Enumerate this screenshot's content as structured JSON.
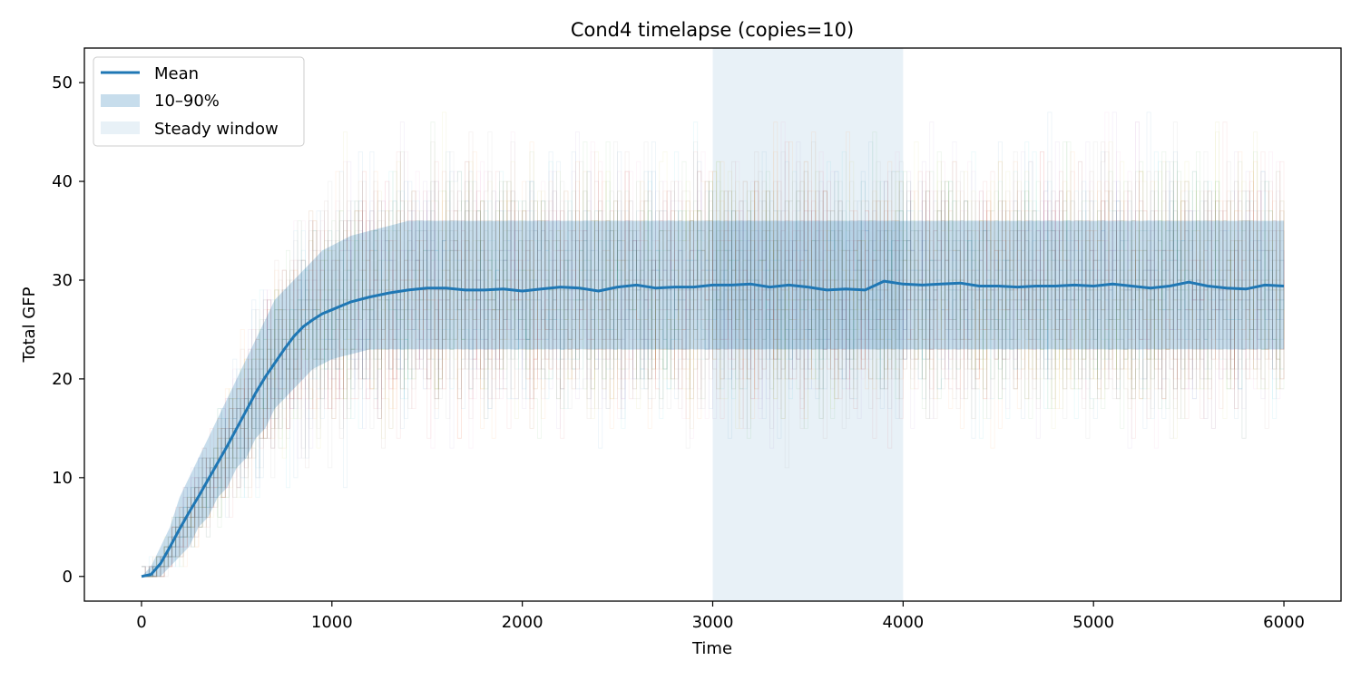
{
  "chart_data": {
    "type": "line",
    "title": "Cond4 timelapse (copies=10)",
    "xlabel": "Time",
    "ylabel": "Total GFP",
    "xlim": [
      -300,
      6300
    ],
    "ylim": [
      -2.5,
      53.5
    ],
    "xticks": [
      0,
      1000,
      2000,
      3000,
      4000,
      5000,
      6000
    ],
    "yticks": [
      0,
      10,
      20,
      30,
      40,
      50
    ],
    "x_start": 0,
    "x_end": 6000,
    "steady_window": [
      3000,
      4000
    ],
    "legend": {
      "placement": "upper-left",
      "entries": [
        "Mean",
        "10–90%",
        "Steady window"
      ]
    },
    "series": [
      {
        "name": "Mean",
        "x": [
          0,
          50,
          100,
          150,
          200,
          250,
          300,
          350,
          400,
          450,
          500,
          550,
          600,
          650,
          700,
          750,
          800,
          850,
          900,
          950,
          1000,
          1100,
          1200,
          1300,
          1400,
          1500,
          1600,
          1700,
          1800,
          1900,
          2000,
          2100,
          2200,
          2300,
          2400,
          2500,
          2600,
          2700,
          2800,
          2900,
          3000,
          3100,
          3200,
          3300,
          3400,
          3500,
          3600,
          3700,
          3800,
          3900,
          4000,
          4100,
          4200,
          4300,
          4400,
          4500,
          4600,
          4700,
          4800,
          4900,
          5000,
          5100,
          5200,
          5300,
          5400,
          5500,
          5600,
          5700,
          5800,
          5900,
          6000
        ],
        "values": [
          0,
          0.2,
          1.3,
          3.0,
          4.8,
          6.5,
          8.1,
          9.8,
          11.5,
          13.2,
          15.0,
          16.8,
          18.6,
          20.2,
          21.6,
          23.0,
          24.3,
          25.3,
          26.0,
          26.6,
          27.0,
          27.8,
          28.3,
          28.7,
          29.0,
          29.2,
          29.2,
          29.0,
          29.0,
          29.1,
          28.9,
          29.1,
          29.3,
          29.2,
          28.9,
          29.3,
          29.5,
          29.2,
          29.3,
          29.3,
          29.5,
          29.5,
          29.6,
          29.3,
          29.5,
          29.3,
          29.0,
          29.1,
          29.0,
          29.9,
          29.6,
          29.5,
          29.6,
          29.7,
          29.4,
          29.4,
          29.3,
          29.4,
          29.4,
          29.5,
          29.4,
          29.6,
          29.4,
          29.2,
          29.4,
          29.8,
          29.4,
          29.2,
          29.1,
          29.5,
          29.4
        ]
      },
      {
        "name": "10–90%",
        "x": [
          0,
          50,
          100,
          150,
          200,
          250,
          300,
          350,
          400,
          450,
          500,
          550,
          600,
          650,
          700,
          750,
          800,
          850,
          900,
          950,
          1000,
          1100,
          1200,
          1300,
          1400,
          1500,
          2000,
          2500,
          3000,
          3500,
          4000,
          4500,
          5000,
          5500,
          6000
        ],
        "lower": [
          0,
          0,
          0,
          1,
          2,
          3,
          5,
          6,
          8,
          9,
          11,
          12,
          14,
          15,
          17,
          18,
          19,
          20,
          21,
          21.5,
          22,
          22.5,
          23,
          23,
          23,
          23,
          23,
          23,
          23,
          23,
          23,
          23,
          23,
          23,
          23
        ],
        "upper": [
          0,
          1,
          3,
          5,
          8,
          10,
          12,
          14,
          16,
          18,
          20,
          22,
          24,
          26,
          28,
          29,
          30,
          31,
          32,
          33,
          33.5,
          34.5,
          35,
          35.5,
          36,
          36,
          36,
          36,
          36,
          36,
          36,
          36,
          36,
          36,
          36
        ]
      }
    ]
  }
}
